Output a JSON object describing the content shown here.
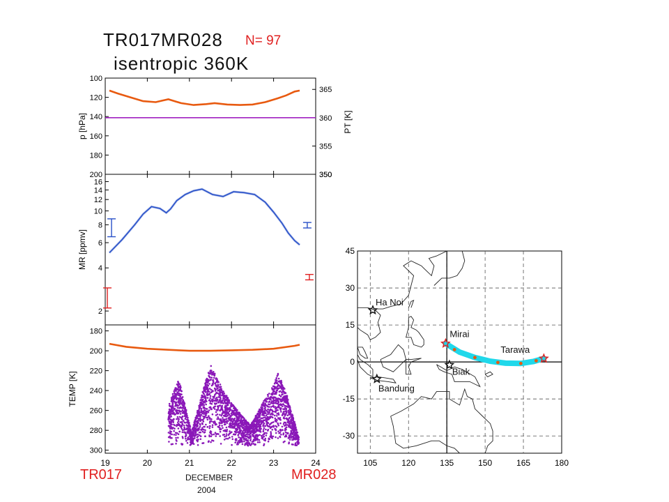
{
  "header": {
    "title_line1": "TR017MR028",
    "count_label": "N= 97",
    "title_line2": "isentropic   360K"
  },
  "footer": {
    "start_label": "TR017",
    "end_label": "MR028",
    "month_label": "DECEMBER",
    "year_label": "2004"
  },
  "colors": {
    "orange": "#e85a10",
    "purple": "#a020c0",
    "blue": "#2850c8",
    "red": "#e02020",
    "cyan": "#20d8ea",
    "scatter": "#8a18b8"
  },
  "chart_data": [
    {
      "type": "line",
      "panel": "pressure",
      "ylabel": "p [hPa]",
      "ylabel_right": "PT [K]",
      "ylim": [
        200,
        100
      ],
      "yticks": [
        100,
        120,
        140,
        160,
        180
      ],
      "ylim_right": [
        350,
        367
      ],
      "yticks_right": [
        365,
        360,
        355,
        350
      ],
      "xlim": [
        19,
        24
      ],
      "series": [
        {
          "axis": "left",
          "color": "orange",
          "x": [
            19.1,
            19.3,
            19.6,
            19.9,
            20.2,
            20.35,
            20.5,
            20.8,
            21.1,
            21.4,
            21.6,
            21.9,
            22.2,
            22.5,
            22.8,
            23.1,
            23.3,
            23.5,
            23.62
          ],
          "y": [
            113,
            116,
            120,
            124,
            125,
            123.5,
            122,
            126,
            128,
            127,
            126,
            127.5,
            128,
            127.5,
            125,
            121,
            118,
            114,
            113
          ]
        },
        {
          "axis": "right",
          "color": "purple",
          "x": [
            19.0,
            24.0
          ],
          "y": [
            360,
            360
          ]
        }
      ]
    },
    {
      "type": "line",
      "panel": "mixing_ratio",
      "ylabel": "MR [ppmv]",
      "scale": "log",
      "ylim": [
        1.6,
        18
      ],
      "yticks": [
        2,
        4,
        6,
        8,
        10,
        12,
        14,
        16
      ],
      "xlim": [
        19,
        24
      ],
      "series": [
        {
          "color": "blue",
          "x": [
            19.1,
            19.4,
            19.7,
            19.9,
            20.1,
            20.3,
            20.45,
            20.55,
            20.7,
            20.9,
            21.1,
            21.3,
            21.55,
            21.8,
            22.05,
            22.3,
            22.55,
            22.8,
            23.0,
            23.2,
            23.35,
            23.5,
            23.62
          ],
          "y": [
            5.1,
            6.3,
            8.0,
            9.5,
            10.7,
            10.4,
            9.7,
            10.3,
            11.8,
            13.0,
            13.8,
            14.2,
            13.0,
            12.6,
            13.6,
            13.4,
            13.0,
            11.5,
            9.8,
            8.2,
            7.0,
            6.2,
            5.8
          ]
        }
      ],
      "error_bars": [
        {
          "color": "blue",
          "x": 19.15,
          "low": 6.6,
          "high": 8.8
        },
        {
          "color": "red",
          "x": 19.05,
          "low": 2.1,
          "high": 2.9
        },
        {
          "color": "blue",
          "x": 23.8,
          "low": 7.6,
          "high": 8.3
        },
        {
          "color": "red",
          "x": 23.85,
          "low": 3.3,
          "high": 3.6
        }
      ]
    },
    {
      "type": "scatter",
      "panel": "temperature",
      "ylabel": "TEMP [K]",
      "ylim": [
        303,
        174
      ],
      "yticks": [
        180,
        200,
        220,
        240,
        260,
        280,
        300
      ],
      "xlim": [
        19,
        24
      ],
      "xticks": [
        19,
        20,
        21,
        22,
        23,
        24
      ],
      "line": {
        "color": "orange",
        "x": [
          19.1,
          19.5,
          20.0,
          20.5,
          21.0,
          21.5,
          22.0,
          22.5,
          23.0,
          23.5,
          23.62
        ],
        "y": [
          193,
          196,
          198,
          199,
          200,
          200,
          199.5,
          199,
          198,
          195,
          194
        ]
      },
      "scatter_envelope": {
        "color": "scatter",
        "x": [
          20.5,
          20.75,
          21.05,
          21.5,
          21.8,
          22.1,
          22.45,
          22.8,
          23.0,
          23.1,
          23.3,
          23.6
        ],
        "ytop": [
          255,
          228,
          282,
          213,
          240,
          258,
          275,
          248,
          235,
          222,
          242,
          287
        ],
        "ybottom": 296
      }
    },
    {
      "type": "map",
      "panel": "trajectory_map",
      "xlim": [
        100,
        180
      ],
      "ylim": [
        -37,
        45
      ],
      "xticks": [
        105,
        120,
        135,
        150,
        165,
        180
      ],
      "yticks": [
        45,
        30,
        15,
        0,
        -15,
        -30
      ],
      "xtick_labels": [
        "105",
        "120",
        "135",
        "150",
        "165",
        "180"
      ],
      "ytick_labels": [
        "45",
        "30",
        "15",
        "0",
        "-15",
        "-30"
      ],
      "stations": [
        {
          "name": "Ha Noi",
          "lon": 106,
          "lat": 21,
          "color": "#111111"
        },
        {
          "name": "Mirai",
          "lon": 134.5,
          "lat": 7.5,
          "color": "red"
        },
        {
          "name": "Tarawa",
          "lon": 173,
          "lat": 1.4,
          "color": "red"
        },
        {
          "name": "Biak",
          "lon": 136,
          "lat": -1.2,
          "color": "#111111"
        },
        {
          "name": "Bandung",
          "lon": 107.6,
          "lat": -6.9,
          "color": "#111111"
        }
      ],
      "trajectory": {
        "lon": [
          134.5,
          140,
          146,
          152,
          158,
          164,
          169,
          173
        ],
        "lat": [
          7.5,
          4.0,
          1.8,
          0.3,
          -0.5,
          -0.6,
          0.2,
          1.4
        ],
        "markers_lon": [
          138,
          146,
          155,
          164,
          170
        ],
        "markers_lat": [
          5.0,
          1.8,
          -0.2,
          -0.6,
          0.5
        ]
      }
    }
  ]
}
